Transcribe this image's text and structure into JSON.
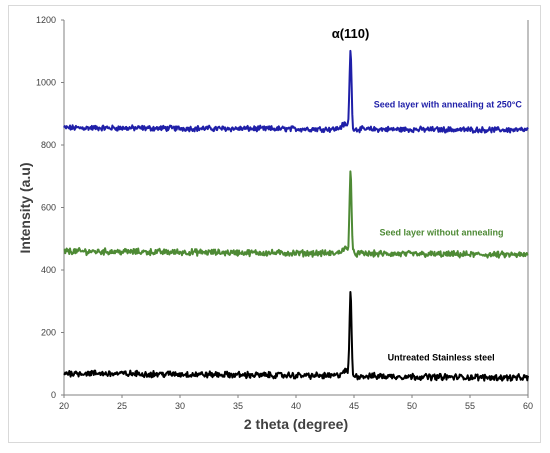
{
  "chart_data": {
    "type": "line",
    "xlabel": "2 theta (degree)",
    "ylabel": "Intensity (a.u)",
    "xlim": [
      20,
      60
    ],
    "ylim": [
      0,
      1200
    ],
    "xticks": [
      "20",
      "25",
      "30",
      "35",
      "40",
      "45",
      "50",
      "55",
      "60"
    ],
    "yticks": [
      "0",
      "200",
      "400",
      "600",
      "800",
      "1000",
      "1200"
    ],
    "grid": false,
    "peak_annotation": {
      "text": "α(110)",
      "x": 44.7,
      "y": 1110
    },
    "series": [
      {
        "name": "Seed layer with annealing at 250°C",
        "color": "#1f1fa8",
        "baseline": 855,
        "baseline_end": 848,
        "noise": 7,
        "peak_x": 44.7,
        "peak_y": 1110,
        "label_x": 46.7,
        "label_y": 920
      },
      {
        "name": "Seed layer without annealing",
        "color": "#4e8a35",
        "baseline": 460,
        "baseline_end": 448,
        "noise": 8,
        "peak_x": 44.7,
        "peak_y": 725,
        "label_x": 47.2,
        "label_y": 510
      },
      {
        "name": "Untreated Stainless steel",
        "color": "#000000",
        "baseline": 70,
        "baseline_end": 55,
        "noise": 8,
        "peak_x": 44.7,
        "peak_y": 335,
        "label_x": 47.9,
        "label_y": 110
      }
    ]
  }
}
